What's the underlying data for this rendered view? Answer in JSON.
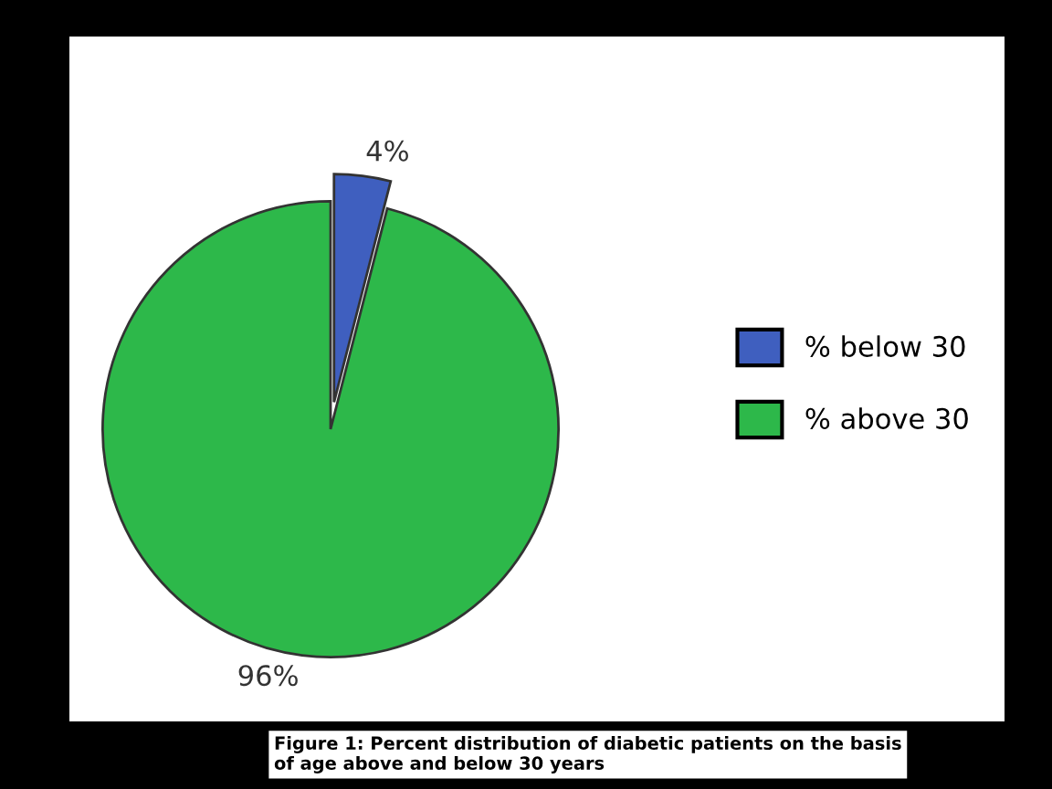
{
  "chart_data": {
    "type": "pie",
    "categories": [
      "% below 30",
      "% above 30"
    ],
    "values": [
      4,
      96
    ],
    "colors": [
      "#3f5fbf",
      "#2db84a"
    ],
    "value_labels": [
      "4%",
      "96%"
    ],
    "legend": "right",
    "annotations": [
      "Figure 1: Percent distribution of diabetic patients on the basis\nof age above and below 30 years"
    ]
  }
}
